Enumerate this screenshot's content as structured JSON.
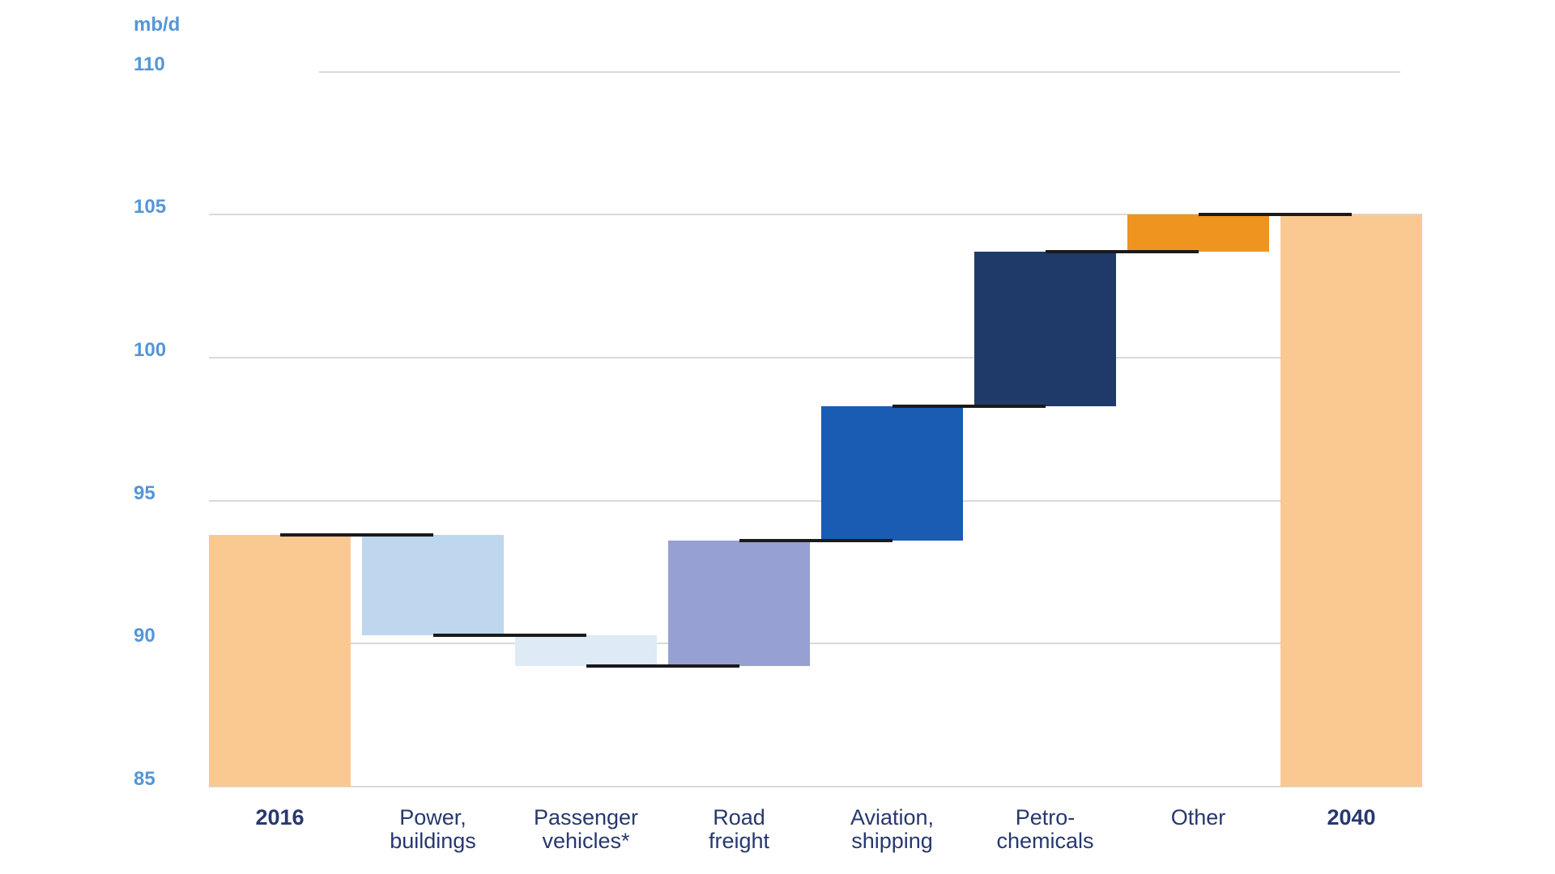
{
  "chart_data": {
    "type": "waterfall",
    "title": "",
    "unit_label": "mb/d",
    "y_axis": {
      "min": 85,
      "max": 110,
      "step": 5,
      "ticks": [
        110,
        105,
        100,
        95,
        90,
        85
      ]
    },
    "columns": [
      {
        "label": "2016",
        "kind": "total",
        "value": 93.8,
        "color": "#FAC992",
        "bold": true
      },
      {
        "label": "Power,\nbuildings",
        "kind": "change",
        "delta": -3.5,
        "color": "#BED7EF",
        "bold": false
      },
      {
        "label": "Passenger\nvehicles*",
        "kind": "change",
        "delta": -1.1,
        "color": "#DEEAF6",
        "bold": false
      },
      {
        "label": "Road\nfreight",
        "kind": "change",
        "delta": 4.4,
        "color": "#97A0D3",
        "bold": false
      },
      {
        "label": "Aviation,\nshipping",
        "kind": "change",
        "delta": 4.7,
        "color": "#1A5BB4",
        "bold": false
      },
      {
        "label": "Petro-\nchemicals",
        "kind": "change",
        "delta": 5.4,
        "color": "#1F3A68",
        "bold": false
      },
      {
        "label": "Other",
        "kind": "change",
        "delta": 1.3,
        "color": "#EF941E",
        "bold": false
      },
      {
        "label": "2040",
        "kind": "total",
        "value": 105.0,
        "color": "#FAC992",
        "bold": true
      }
    ],
    "start_value": 93.8,
    "end_value": 105.0,
    "colors": {
      "axis_label": "#5596D6",
      "category_label": "#27386E",
      "gridline": "#D9D9D9",
      "connector": "#1A1A1A"
    },
    "grid": true,
    "legend_position": "none"
  }
}
